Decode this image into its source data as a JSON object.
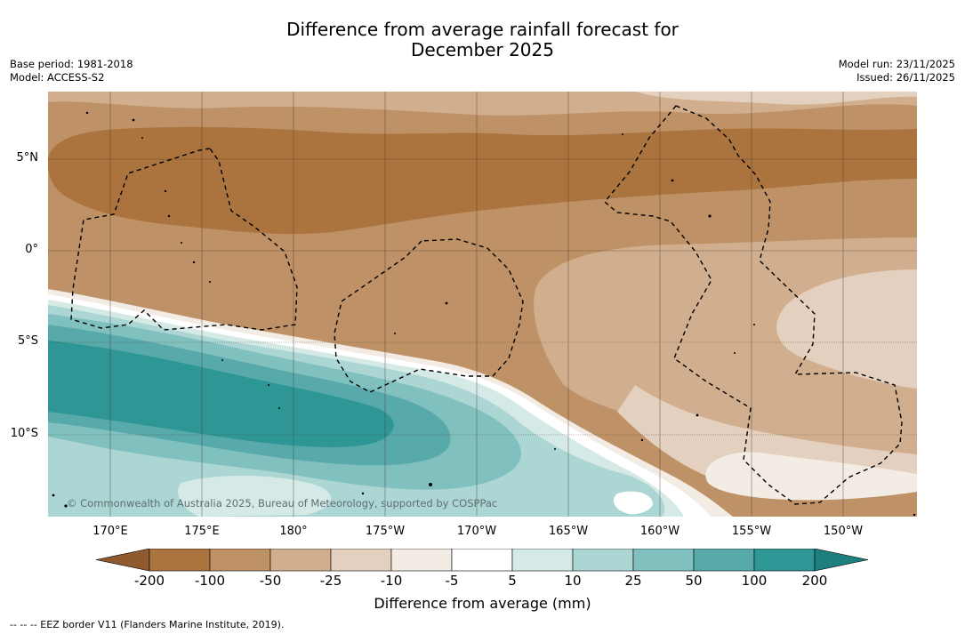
{
  "title": {
    "line1": "Difference from average rainfall forecast for",
    "line2": "December 2025"
  },
  "meta": {
    "base_period": "Base period: 1981-2018",
    "model": "Model: ACCESS-S2",
    "model_run": "Model run: 23/11/2025",
    "issued": "Issued: 26/11/2025"
  },
  "map": {
    "copyright": "© Commonwealth of Australia 2025, Bureau of Meteorology, supported by COSPPac",
    "lat_labels": [
      "5°N",
      "0°",
      "5°S",
      "10°S"
    ],
    "lon_labels": [
      "170°E",
      "175°E",
      "180°",
      "175°W",
      "170°W",
      "165°W",
      "160°W",
      "155°W",
      "150°W"
    ]
  },
  "colorbar": {
    "ticks": [
      "-200",
      "-100",
      "-50",
      "-25",
      "-10",
      "-5",
      "5",
      "10",
      "25",
      "50",
      "100",
      "200"
    ],
    "colors": [
      "#8f5a2d",
      "#ab743f",
      "#be9166",
      "#d0ae8e",
      "#e3d0be",
      "#f2ece5",
      "#ffffff",
      "#d5eae7",
      "#abd6d4",
      "#80c0be",
      "#58a9a9",
      "#2e9694",
      "#1d7f7e"
    ],
    "label": "Difference from average (mm)"
  },
  "footnote": "--  --  -- EEZ border V11 (Flanders Marine Institute, 2019)."
}
